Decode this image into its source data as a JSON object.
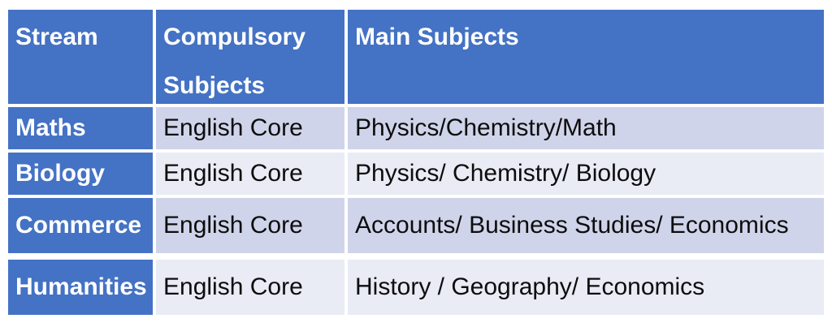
{
  "table": {
    "header": {
      "stream": "Stream",
      "compulsory": "Compulsory Subjects",
      "main": "Main Subjects"
    },
    "rows": [
      {
        "stream": "Maths",
        "compulsory": "English Core",
        "main": "Physics/Chemistry/Math"
      },
      {
        "stream": "Biology",
        "compulsory": "English Core",
        "main": "Physics/ Chemistry/ Biology"
      },
      {
        "stream": "Commerce",
        "compulsory": "English Core",
        "main": "Accounts/ Business Studies/ Economics"
      },
      {
        "stream": "Humanities",
        "compulsory": "English Core",
        "main": "History / Geography/ Economics"
      }
    ],
    "colors": {
      "header_bg": "#4472C4",
      "stream_column_bg": "#4472C4",
      "band_dark": "#CFD4EA",
      "band_light": "#E9EBF5",
      "header_text": "#FFFFFF",
      "body_text": "#0D0D0D",
      "gridline": "#FFFFFF"
    }
  }
}
